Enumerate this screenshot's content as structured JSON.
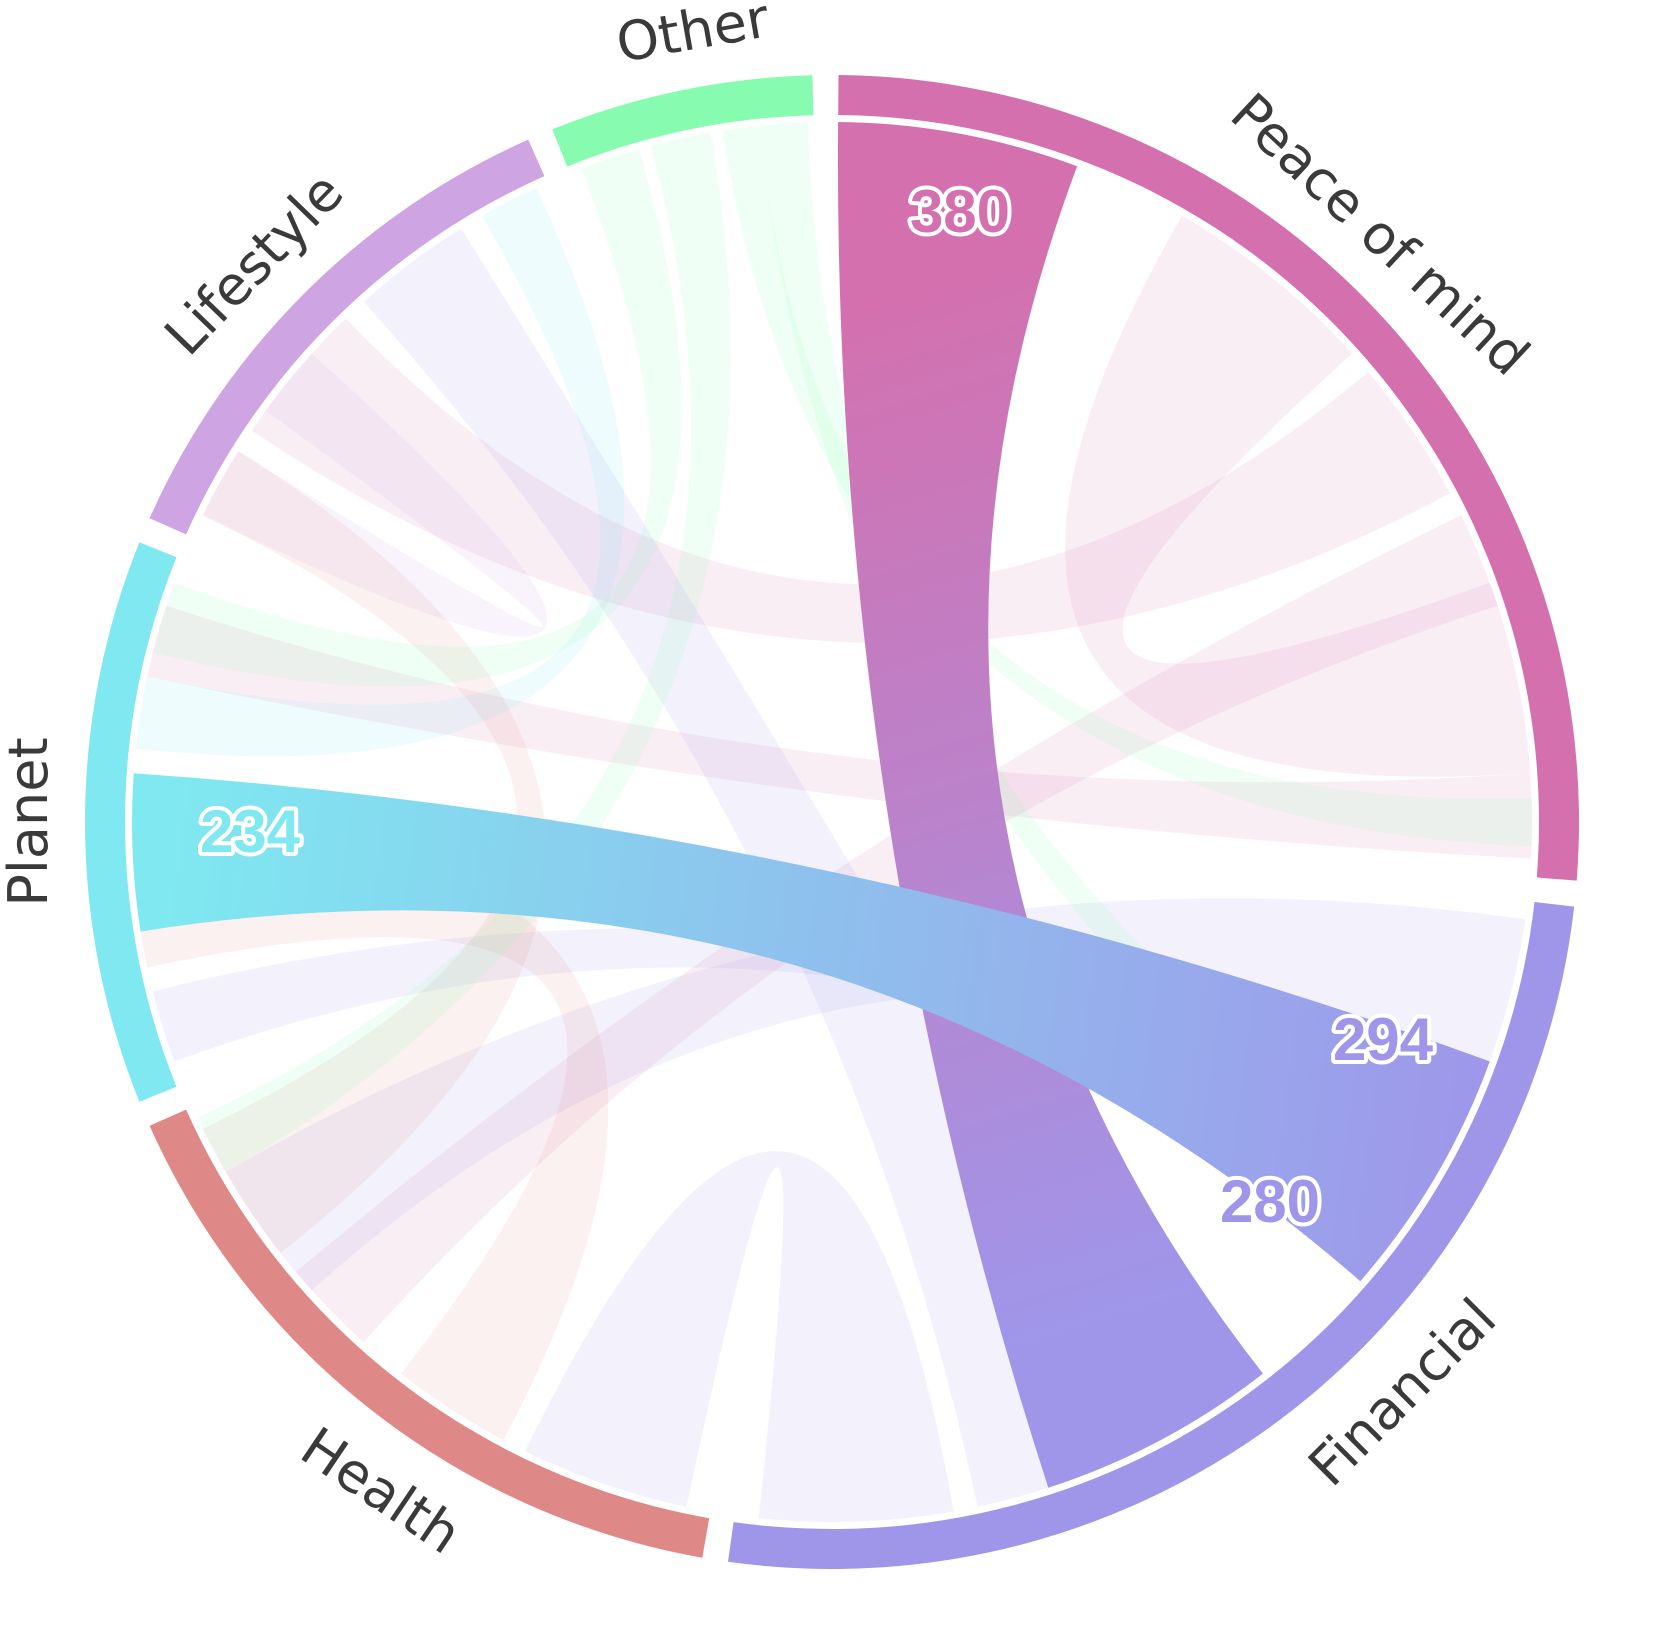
{
  "chart_data": {
    "type": "chord",
    "groups": [
      {
        "name": "Peace of mind",
        "color": "#d470ae"
      },
      {
        "name": "Financial",
        "color": "#9f96ea"
      },
      {
        "name": "Health",
        "color": "#de8987"
      },
      {
        "name": "Planet",
        "color": "#7fe8f0"
      },
      {
        "name": "Lifestyle",
        "color": "#cfa4e2"
      },
      {
        "name": "Other",
        "color": "#87fbb0"
      }
    ],
    "highlighted_links": [
      {
        "source": "Peace of mind",
        "target": "Financial",
        "source_value": 380,
        "target_value": 280
      },
      {
        "source": "Planet",
        "target": "Financial",
        "source_value": 234,
        "target_value": 294
      }
    ],
    "value_labels": [
      {
        "text": "380",
        "group": "Peace of mind",
        "color": "#d470ae"
      },
      {
        "text": "280",
        "group": "Financial",
        "color": "#9f96ea"
      },
      {
        "text": "294",
        "group": "Financial",
        "color": "#9f96ea"
      },
      {
        "text": "234",
        "group": "Planet",
        "color": "#7fe8f0"
      }
    ]
  }
}
